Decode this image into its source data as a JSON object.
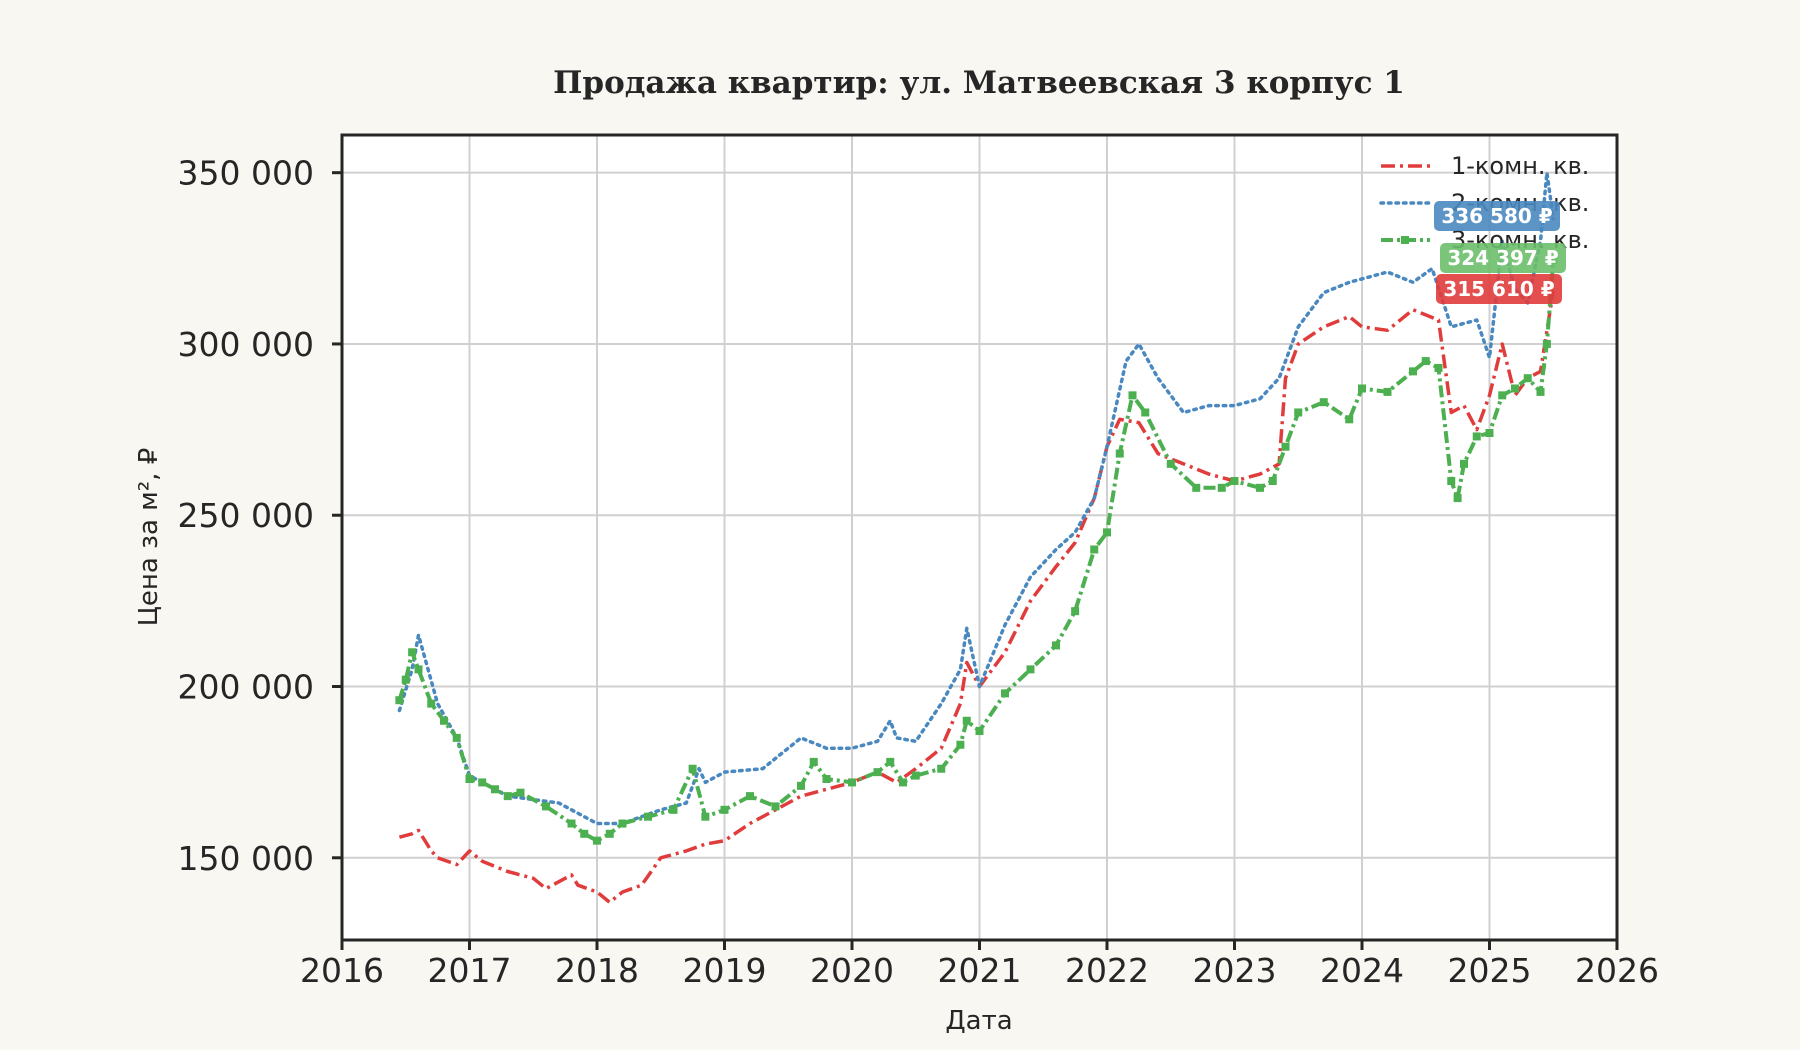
{
  "chart_data": {
    "type": "line",
    "title": "Продажа квартир: ул. Матвеевская 3 корпус 1",
    "xlabel": "Дата",
    "ylabel": "Цена за м², ₽",
    "xlim": [
      2016,
      2026
    ],
    "ylim": [
      126000,
      361000
    ],
    "x_ticks": [
      2016,
      2017,
      2018,
      2019,
      2020,
      2021,
      2022,
      2023,
      2024,
      2025,
      2026
    ],
    "x_tick_labels": [
      "2016",
      "2017",
      "2018",
      "2019",
      "2020",
      "2021",
      "2022",
      "2023",
      "2024",
      "2025",
      "2026"
    ],
    "y_ticks": [
      150000,
      200000,
      250000,
      300000,
      350000
    ],
    "y_tick_labels": [
      "150 000",
      "200 000",
      "250 000",
      "300 000",
      "350 000"
    ],
    "grid": true,
    "legend_position": "top-right",
    "series": [
      {
        "name": "1-комн. кв.",
        "color": "#e03c3c",
        "style": "dashdot",
        "x": [
          2016.45,
          2016.55,
          2016.6,
          2016.7,
          2016.75,
          2016.9,
          2017.0,
          2017.1,
          2017.3,
          2017.5,
          2017.6,
          2017.8,
          2017.85,
          2018.0,
          2018.1,
          2018.2,
          2018.35,
          2018.5,
          2018.7,
          2018.85,
          2019.0,
          2019.2,
          2019.4,
          2019.6,
          2019.8,
          2020.0,
          2020.2,
          2020.35,
          2020.5,
          2020.7,
          2020.85,
          2020.9,
          2021.0,
          2021.2,
          2021.4,
          2021.6,
          2021.75,
          2021.9,
          2022.0,
          2022.1,
          2022.25,
          2022.4,
          2022.6,
          2022.8,
          2023.0,
          2023.2,
          2023.35,
          2023.4,
          2023.5,
          2023.7,
          2023.9,
          2024.0,
          2024.2,
          2024.4,
          2024.6,
          2024.7,
          2024.8,
          2024.9,
          2025.0,
          2025.1,
          2025.2,
          2025.3,
          2025.4,
          2025.5
        ],
        "values": [
          156000,
          157000,
          158000,
          152000,
          150000,
          148000,
          152000,
          149000,
          146000,
          144000,
          141000,
          145000,
          142000,
          140000,
          137000,
          140000,
          142000,
          150000,
          152000,
          154000,
          155000,
          160000,
          164000,
          168000,
          170000,
          172000,
          175000,
          172000,
          176000,
          182000,
          195000,
          207000,
          200000,
          210000,
          225000,
          235000,
          242000,
          255000,
          270000,
          278000,
          277000,
          268000,
          265000,
          262000,
          260000,
          262000,
          265000,
          290000,
          300000,
          305000,
          308000,
          305000,
          304000,
          310000,
          307000,
          280000,
          282000,
          275000,
          285000,
          300000,
          285000,
          290000,
          292000,
          315610
        ]
      },
      {
        "name": "2-комн. кв.",
        "color": "#4a88c0",
        "style": "dotted",
        "x": [
          2016.45,
          2016.55,
          2016.6,
          2016.75,
          2016.9,
          2017.0,
          2017.3,
          2017.5,
          2017.7,
          2018.0,
          2018.2,
          2018.5,
          2018.7,
          2018.8,
          2018.85,
          2019.0,
          2019.3,
          2019.6,
          2019.8,
          2020.0,
          2020.2,
          2020.3,
          2020.35,
          2020.5,
          2020.7,
          2020.85,
          2020.9,
          2021.0,
          2021.2,
          2021.4,
          2021.6,
          2021.75,
          2021.9,
          2022.0,
          2022.15,
          2022.25,
          2022.4,
          2022.6,
          2022.8,
          2023.0,
          2023.2,
          2023.35,
          2023.5,
          2023.7,
          2023.9,
          2024.0,
          2024.2,
          2024.4,
          2024.55,
          2024.7,
          2024.9,
          2025.0,
          2025.1,
          2025.2,
          2025.3,
          2025.4,
          2025.45,
          2025.5
        ],
        "values": [
          193000,
          205000,
          215000,
          195000,
          185000,
          174000,
          168000,
          167000,
          166000,
          160000,
          160000,
          164000,
          166000,
          176000,
          172000,
          175000,
          176000,
          185000,
          182000,
          182000,
          184000,
          190000,
          185000,
          184000,
          195000,
          205000,
          217000,
          200000,
          218000,
          232000,
          240000,
          245000,
          255000,
          270000,
          295000,
          300000,
          290000,
          280000,
          282000,
          282000,
          284000,
          290000,
          305000,
          315000,
          318000,
          319000,
          321000,
          318000,
          322000,
          305000,
          307000,
          296000,
          330000,
          316000,
          312000,
          330000,
          350000,
          336580
        ]
      },
      {
        "name": "3-комн. кв.",
        "color": "#4caf50",
        "style": "dashdot-square",
        "x": [
          2016.45,
          2016.5,
          2016.55,
          2016.6,
          2016.7,
          2016.8,
          2016.9,
          2017.0,
          2017.1,
          2017.2,
          2017.3,
          2017.4,
          2017.6,
          2017.8,
          2017.9,
          2018.0,
          2018.1,
          2018.2,
          2018.4,
          2018.6,
          2018.75,
          2018.85,
          2019.0,
          2019.2,
          2019.4,
          2019.6,
          2019.7,
          2019.8,
          2020.0,
          2020.2,
          2020.3,
          2020.4,
          2020.5,
          2020.7,
          2020.85,
          2020.9,
          2021.0,
          2021.2,
          2021.4,
          2021.6,
          2021.75,
          2021.9,
          2022.0,
          2022.1,
          2022.2,
          2022.3,
          2022.5,
          2022.7,
          2022.9,
          2023.0,
          2023.2,
          2023.3,
          2023.4,
          2023.5,
          2023.7,
          2023.9,
          2024.0,
          2024.2,
          2024.4,
          2024.5,
          2024.6,
          2024.7,
          2024.75,
          2024.8,
          2024.9,
          2025.0,
          2025.1,
          2025.2,
          2025.3,
          2025.4,
          2025.45,
          2025.5
        ],
        "values": [
          196000,
          202000,
          210000,
          205000,
          195000,
          190000,
          185000,
          173000,
          172000,
          170000,
          168000,
          169000,
          165000,
          160000,
          157000,
          155000,
          157000,
          160000,
          162000,
          164000,
          176000,
          162000,
          164000,
          168000,
          165000,
          171000,
          178000,
          173000,
          172000,
          175000,
          178000,
          172000,
          174000,
          176000,
          183000,
          190000,
          187000,
          198000,
          205000,
          212000,
          222000,
          240000,
          245000,
          268000,
          285000,
          280000,
          265000,
          258000,
          258000,
          260000,
          258000,
          260000,
          270000,
          280000,
          283000,
          278000,
          287000,
          286000,
          292000,
          295000,
          293000,
          260000,
          255000,
          265000,
          273000,
          274000,
          285000,
          287000,
          290000,
          286000,
          300000,
          324397
        ]
      }
    ],
    "end_labels": [
      {
        "series": "2-комн. кв.",
        "text": "336 580 ₽",
        "color": "#4a88c0",
        "value": 336580
      },
      {
        "series": "3-комн. кв.",
        "text": "324 397 ₽",
        "color": "#6dbf6d",
        "value": 324397
      },
      {
        "series": "1-комн. кв.",
        "text": "315 610 ₽",
        "color": "#e03c3c",
        "value": 315610
      }
    ]
  }
}
